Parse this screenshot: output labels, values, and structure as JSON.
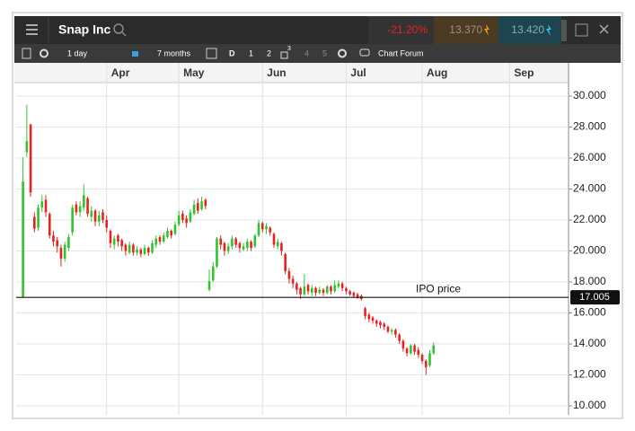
{
  "header": {
    "title": "Snap Inc",
    "change": "-21.20%",
    "sell": "13.370",
    "buy": "13.420"
  },
  "toolbar": {
    "interval": "1 day",
    "range": "7 months",
    "type": "D",
    "options": [
      "1",
      "2",
      "3",
      "4",
      "5"
    ],
    "forum": "Chart Forum"
  },
  "chart_data": {
    "type": "candlestick",
    "open": [
      17.0,
      26.39,
      28.17,
      22.2,
      21.5,
      22.8,
      23.3,
      22.4,
      21.0,
      20.7,
      20.2,
      19.5,
      20.2,
      21.2,
      23.0,
      22.5,
      22.8,
      23.4,
      22.2,
      22.6,
      21.9,
      22.5,
      22.0,
      21.3,
      20.4,
      21.0,
      20.7,
      20.4,
      19.9,
      20.4,
      19.9,
      20.1,
      19.8,
      20.2,
      19.9,
      20.4,
      20.9,
      20.6,
      20.9,
      21.3,
      21.1,
      21.7,
      22.4,
      22.1,
      21.9,
      22.4,
      23.1,
      22.7,
      23.3,
      17.5,
      18.1,
      19.0,
      20.8,
      20.5,
      20.0,
      20.3,
      20.8,
      20.5,
      20.1,
      20.2,
      20.6,
      20.3,
      21.0,
      21.8,
      21.4,
      21.5,
      21.1,
      20.3,
      20.5,
      19.8,
      18.7,
      18.2,
      17.9,
      17.6,
      17.2,
      17.8,
      17.3,
      17.6,
      17.3,
      17.5,
      17.3,
      17.7,
      17.4,
      17.7,
      17.9,
      17.6,
      17.4,
      17.3,
      17.2,
      17.1,
      16.3,
      15.9,
      15.7,
      15.5,
      15.4,
      15.3,
      15.1,
      14.8,
      14.9,
      14.6,
      14.2,
      13.7,
      13.4,
      13.9,
      13.6,
      13.3,
      12.9,
      12.6,
      13.4
    ],
    "high": [
      26.05,
      29.44,
      28.2,
      22.5,
      23.0,
      23.6,
      23.6,
      22.5,
      21.3,
      20.9,
      20.4,
      20.6,
      21.1,
      23.0,
      23.2,
      23.2,
      24.3,
      23.5,
      22.9,
      22.7,
      22.6,
      22.7,
      22.3,
      21.4,
      21.0,
      21.1,
      20.8,
      20.5,
      20.6,
      20.5,
      20.3,
      20.2,
      20.4,
      20.3,
      20.7,
      21.0,
      21.0,
      21.2,
      21.5,
      21.4,
      21.9,
      22.6,
      22.6,
      22.3,
      22.7,
      23.3,
      23.4,
      23.5,
      23.4,
      18.8,
      19.3,
      20.9,
      21.0,
      20.6,
      20.5,
      21.0,
      20.9,
      20.6,
      20.5,
      20.8,
      20.7,
      21.1,
      22.0,
      21.9,
      21.8,
      21.6,
      21.2,
      20.8,
      20.6,
      19.9,
      18.9,
      18.4,
      18.0,
      17.7,
      18.5,
      17.9,
      17.8,
      17.7,
      17.7,
      17.6,
      17.8,
      17.8,
      18.1,
      18.1,
      18.0,
      17.7,
      17.5,
      17.4,
      17.3,
      17.2,
      16.4,
      16.0,
      15.8,
      15.6,
      15.5,
      15.4,
      15.2,
      15.0,
      15.0,
      14.7,
      14.3,
      13.8,
      14.0,
      14.0,
      13.8,
      13.4,
      13.0,
      13.6,
      14.1
    ],
    "low": [
      17.0,
      26.06,
      23.5,
      21.2,
      21.3,
      22.5,
      22.2,
      20.8,
      20.3,
      19.9,
      19.0,
      19.3,
      20.0,
      21.0,
      22.3,
      22.2,
      22.6,
      22.2,
      21.9,
      21.6,
      21.6,
      21.8,
      21.2,
      20.2,
      20.1,
      20.3,
      20.0,
      19.7,
      19.8,
      19.7,
      19.7,
      19.6,
      19.7,
      19.7,
      19.8,
      20.2,
      20.4,
      20.5,
      20.8,
      20.8,
      21.0,
      21.6,
      21.8,
      21.5,
      21.8,
      22.3,
      22.4,
      22.6,
      22.7,
      17.4,
      18.0,
      18.9,
      20.1,
      19.7,
      19.8,
      20.1,
      20.2,
      19.9,
      20.0,
      20.0,
      20.0,
      20.2,
      20.9,
      21.2,
      21.1,
      21.0,
      20.2,
      20.1,
      19.7,
      18.5,
      17.9,
      17.6,
      17.2,
      16.9,
      17.1,
      17.2,
      17.1,
      17.1,
      17.2,
      17.1,
      17.2,
      17.2,
      17.3,
      17.6,
      17.4,
      17.2,
      17.1,
      17.0,
      16.9,
      16.8,
      15.6,
      15.4,
      15.3,
      15.1,
      15.0,
      14.9,
      14.7,
      14.6,
      14.4,
      14.0,
      13.5,
      13.2,
      13.3,
      13.3,
      13.1,
      12.7,
      12.0,
      12.5,
      13.3
    ],
    "close": [
      24.48,
      27.09,
      23.77,
      21.44,
      22.8,
      23.2,
      22.5,
      21.0,
      20.6,
      20.3,
      19.5,
      20.4,
      20.9,
      22.8,
      22.5,
      22.9,
      23.6,
      22.4,
      22.6,
      21.9,
      22.3,
      22.0,
      21.5,
      20.5,
      20.8,
      20.6,
      20.3,
      20.0,
      20.4,
      19.9,
      20.1,
      19.8,
      20.2,
      19.9,
      20.5,
      20.8,
      20.6,
      21.0,
      21.3,
      21.0,
      21.7,
      22.3,
      22.0,
      21.8,
      22.5,
      23.0,
      22.6,
      23.2,
      22.9,
      18.05,
      19.0,
      20.8,
      20.4,
      20.0,
      20.3,
      20.8,
      20.4,
      20.2,
      20.3,
      20.6,
      20.2,
      21.0,
      21.8,
      21.4,
      21.6,
      21.2,
      20.4,
      20.6,
      20.0,
      18.7,
      18.2,
      17.9,
      17.5,
      17.2,
      17.7,
      17.4,
      17.6,
      17.3,
      17.5,
      17.3,
      17.7,
      17.4,
      17.8,
      17.9,
      17.6,
      17.4,
      17.2,
      17.1,
      17.0,
      16.9,
      15.8,
      15.6,
      15.5,
      15.3,
      15.2,
      15.1,
      14.8,
      14.9,
      14.6,
      14.2,
      13.7,
      13.4,
      13.9,
      13.5,
      13.3,
      12.9,
      12.5,
      13.4,
      13.9
    ],
    "up_color": "#2fc42f",
    "down_color": "#e8221f",
    "xlim": [
      -1.8,
      143.5
    ],
    "xticks": [
      {
        "value": 22,
        "label": "Apr"
      },
      {
        "value": 41,
        "label": "May"
      },
      {
        "value": 63,
        "label": "Jun"
      },
      {
        "value": 85,
        "label": "Jul"
      },
      {
        "value": 105,
        "label": "Aug"
      },
      {
        "value": 128,
        "label": "Sep"
      }
    ],
    "ylim": [
      9.42,
      30.87
    ],
    "yticks": [
      {
        "value": 10,
        "label": "10.000"
      },
      {
        "value": 12,
        "label": "12.000"
      },
      {
        "value": 14,
        "label": "14.000"
      },
      {
        "value": 16,
        "label": "16.000"
      },
      {
        "value": 18,
        "label": "18.000"
      },
      {
        "value": 20,
        "label": "20.000"
      },
      {
        "value": 22,
        "label": "22.000"
      },
      {
        "value": 24,
        "label": "24.000"
      },
      {
        "value": 26,
        "label": "26.000"
      },
      {
        "value": 28,
        "label": "28.000"
      },
      {
        "value": 30,
        "label": "30.000"
      }
    ],
    "grid": true,
    "reference_line": {
      "value": 17.005,
      "annotation": "IPO price"
    }
  }
}
